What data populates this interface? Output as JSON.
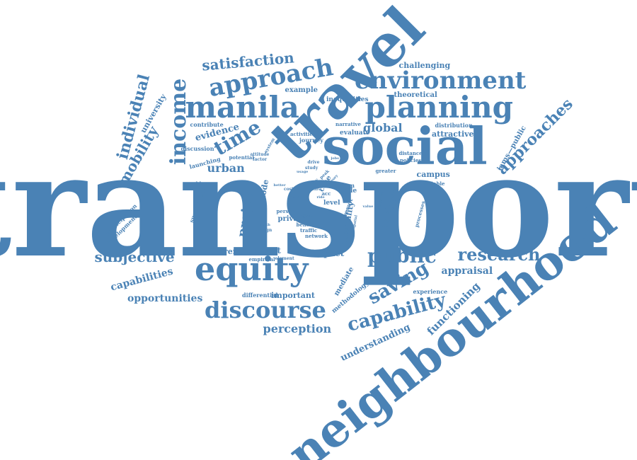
{
  "color": "#4a82b5",
  "words": [
    {
      "text": "transport"
    },
    {
      "text": "neighbourhood"
    },
    {
      "text": "social"
    },
    {
      "text": "travel"
    },
    {
      "text": "equity"
    },
    {
      "text": "planning"
    },
    {
      "text": "manila"
    },
    {
      "text": "approach"
    },
    {
      "text": "environment"
    },
    {
      "text": "discourse"
    },
    {
      "text": "income"
    },
    {
      "text": "public"
    },
    {
      "text": "research"
    },
    {
      "text": "capability"
    },
    {
      "text": "time"
    },
    {
      "text": "saving"
    },
    {
      "text": "approaches"
    },
    {
      "text": "satisfaction"
    },
    {
      "text": "individual"
    },
    {
      "text": "subjective"
    },
    {
      "text": "mobility"
    },
    {
      "text": "project"
    },
    {
      "text": "perception"
    },
    {
      "text": "opportunities"
    },
    {
      "text": "capabilities"
    },
    {
      "text": "global"
    },
    {
      "text": "urban"
    },
    {
      "text": "appraisal"
    },
    {
      "text": "functioning"
    },
    {
      "text": "understanding"
    },
    {
      "text": "analysis"
    },
    {
      "text": "evidence"
    },
    {
      "text": "challenging"
    },
    {
      "text": "university"
    },
    {
      "text": "context"
    },
    {
      "text": "impact"
    },
    {
      "text": "different"
    },
    {
      "text": "important"
    },
    {
      "text": "mediate"
    },
    {
      "text": "inequality"
    },
    {
      "text": "iams—public"
    },
    {
      "text": "campus"
    },
    {
      "text": "attractive"
    },
    {
      "text": "mode"
    },
    {
      "text": "case"
    },
    {
      "text": "chile"
    },
    {
      "text": "private"
    },
    {
      "text": "level"
    },
    {
      "text": "example"
    },
    {
      "text": "theoretical"
    },
    {
      "text": "inequalities"
    },
    {
      "text": "evaluate"
    },
    {
      "text": "journey"
    },
    {
      "text": "distribution"
    },
    {
      "text": "contribute"
    },
    {
      "text": "discussion"
    },
    {
      "text": "launching"
    },
    {
      "text": "participation"
    },
    {
      "text": "development"
    },
    {
      "text": "sustainable"
    },
    {
      "text": "methodology"
    },
    {
      "text": "experience"
    },
    {
      "text": "differential"
    },
    {
      "text": "empirical"
    },
    {
      "text": "network"
    },
    {
      "text": "traffic"
    },
    {
      "text": "benefit"
    },
    {
      "text": "person"
    },
    {
      "text": "result"
    },
    {
      "text": "term"
    },
    {
      "text": "acc"
    },
    {
      "text": "problem"
    },
    {
      "text": "narrative"
    },
    {
      "text": "variable"
    },
    {
      "text": "greater"
    },
    {
      "text": "policies"
    },
    {
      "text": "distance"
    },
    {
      "text": "processes"
    },
    {
      "text": "potential"
    },
    {
      "text": "activities"
    },
    {
      "text": "study"
    },
    {
      "text": "drive"
    },
    {
      "text": "attitude"
    },
    {
      "text": "factor"
    },
    {
      "text": "system"
    },
    {
      "text": "design"
    },
    {
      "text": "element"
    },
    {
      "text": "usage"
    },
    {
      "text": "health"
    },
    {
      "text": "cost"
    },
    {
      "text": "peak"
    },
    {
      "text": "theory"
    },
    {
      "text": "city"
    },
    {
      "text": "better"
    },
    {
      "text": "model"
    },
    {
      "text": "attribute"
    },
    {
      "text": "spatial"
    },
    {
      "text": "extent"
    },
    {
      "text": "land"
    },
    {
      "text": "cars"
    },
    {
      "text": "jobs"
    },
    {
      "text": "ride"
    },
    {
      "text": "value"
    }
  ]
}
